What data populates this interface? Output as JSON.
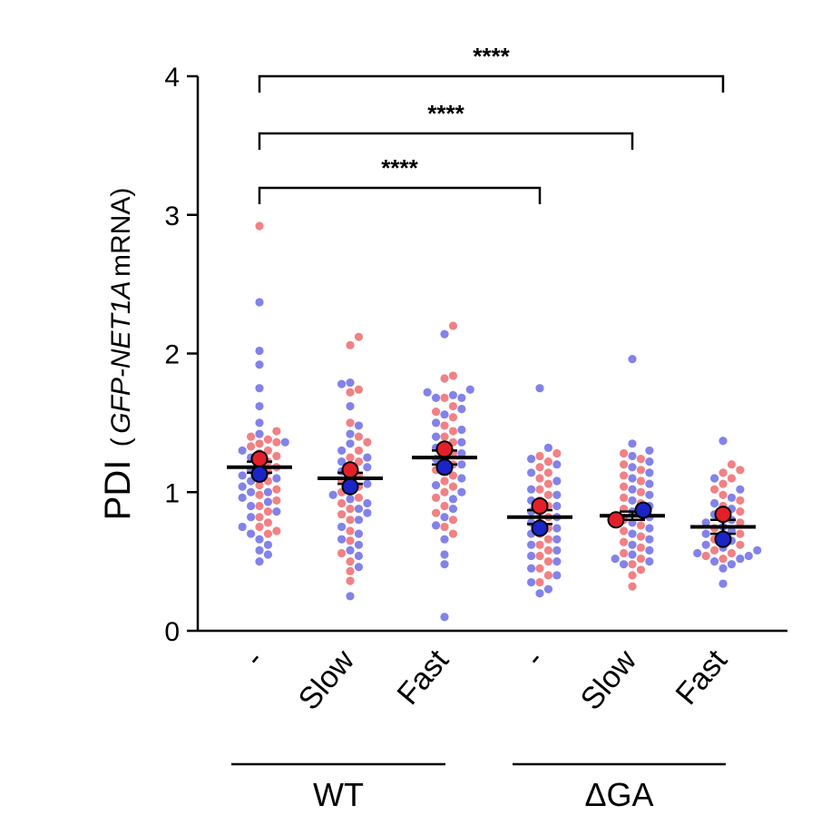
{
  "chart_data": {
    "type": "scatter",
    "ylabel": {
      "main": "PDI",
      "open": "(",
      "gene": "GFP-NET1A",
      "suffix": " mRNA)"
    },
    "ylim": [
      0,
      4
    ],
    "yticks": [
      0,
      1,
      2,
      3,
      4
    ],
    "categories": [
      "-",
      "Slow",
      "Fast",
      "-",
      "Slow",
      "Fast"
    ],
    "groups": [
      {
        "label": "WT",
        "categories": [
          0,
          1,
          2
        ]
      },
      {
        "label": "ΔGA",
        "categories": [
          3,
          4,
          5
        ]
      }
    ],
    "series_colors": {
      "rep1": "#ee6b6f",
      "rep2": "#6c6ce6",
      "rep1_mean": "#e3202a",
      "rep2_mean": "#1a24c8"
    },
    "means": [
      1.18,
      1.1,
      1.25,
      0.82,
      0.83,
      0.75
    ],
    "sem": [
      0.04,
      0.04,
      0.05,
      0.05,
      0.03,
      0.05
    ],
    "rep_means": [
      {
        "rep1": 1.24,
        "rep2": 1.13
      },
      {
        "rep1": 1.16,
        "rep2": 1.04
      },
      {
        "rep1": 1.31,
        "rep2": 1.18
      },
      {
        "rep1": 0.9,
        "rep2": 0.74
      },
      {
        "rep1": 0.8,
        "rep2": 0.87
      },
      {
        "rep1": 0.84,
        "rep2": 0.66
      }
    ],
    "points": [
      {
        "rep1": [
          2.92,
          1.44,
          1.4,
          1.38,
          1.35,
          1.33,
          1.3,
          1.28,
          1.26,
          1.22,
          1.18,
          1.15,
          1.12,
          1.08,
          1.05,
          1.02,
          0.98,
          0.94,
          0.9,
          0.86,
          0.82,
          0.78,
          0.75,
          0.72,
          0.7,
          1.36
        ],
        "rep2": [
          2.37,
          2.02,
          1.92,
          1.75,
          1.62,
          1.5,
          1.42,
          1.36,
          1.3,
          1.25,
          1.2,
          1.16,
          1.12,
          1.08,
          1.04,
          1.0,
          0.96,
          0.93,
          0.9,
          0.86,
          0.82,
          0.75,
          0.7,
          0.66,
          0.62,
          0.58,
          0.55,
          0.5,
          1.1,
          1.0
        ]
      },
      {
        "rep1": [
          2.12,
          2.06,
          1.74,
          1.72,
          1.5,
          1.4,
          1.36,
          1.3,
          1.25,
          1.22,
          1.18,
          1.12,
          1.08,
          1.04,
          1.0,
          0.96,
          0.92,
          0.88,
          0.84,
          0.8,
          0.72,
          0.65,
          0.56,
          0.5,
          0.43,
          0.36
        ],
        "rep2": [
          1.79,
          1.78,
          1.62,
          1.48,
          1.42,
          1.35,
          1.3,
          1.25,
          1.22,
          1.18,
          1.15,
          1.1,
          1.06,
          1.02,
          0.98,
          0.95,
          0.92,
          0.88,
          0.85,
          0.8,
          0.75,
          0.7,
          0.66,
          0.62,
          0.58,
          0.54,
          0.46,
          0.25
        ]
      },
      {
        "rep1": [
          2.2,
          1.84,
          1.82,
          1.68,
          1.62,
          1.58,
          1.54,
          1.48,
          1.44,
          1.4,
          1.36,
          1.32,
          1.28,
          1.24,
          1.2,
          1.16,
          1.12,
          1.08,
          1.04,
          1.0,
          0.96,
          0.9,
          0.85,
          0.8,
          0.75,
          0.7
        ],
        "rep2": [
          2.14,
          1.74,
          1.72,
          1.7,
          1.68,
          1.68,
          1.6,
          1.56,
          1.5,
          1.45,
          1.4,
          1.36,
          1.32,
          1.28,
          1.24,
          1.2,
          1.15,
          1.1,
          1.05,
          1.0,
          0.95,
          0.88,
          0.82,
          0.76,
          0.66,
          0.55,
          0.48,
          0.1
        ]
      },
      {
        "rep1": [
          1.28,
          1.26,
          1.22,
          1.18,
          1.14,
          1.1,
          1.06,
          1.02,
          0.98,
          0.94,
          0.9,
          0.86,
          0.82,
          0.78,
          0.74,
          0.7,
          0.66,
          0.62,
          0.58,
          0.54,
          0.5,
          0.45,
          0.4,
          0.35
        ],
        "rep2": [
          1.75,
          1.32,
          1.24,
          1.2,
          1.14,
          1.08,
          1.02,
          0.98,
          0.94,
          0.9,
          0.86,
          0.82,
          0.78,
          0.74,
          0.7,
          0.66,
          0.62,
          0.58,
          0.54,
          0.5,
          0.45,
          0.4,
          0.35,
          0.3,
          0.27
        ]
      },
      {
        "rep1": [
          1.28,
          1.24,
          1.2,
          1.16,
          1.12,
          1.08,
          1.04,
          1.0,
          0.96,
          0.92,
          0.88,
          0.84,
          0.8,
          0.76,
          0.72,
          0.68,
          0.64,
          0.6,
          0.56,
          0.52,
          0.48,
          0.44,
          0.4,
          0.32
        ],
        "rep2": [
          1.96,
          1.35,
          1.3,
          1.26,
          1.22,
          1.18,
          1.14,
          1.1,
          1.06,
          1.02,
          0.98,
          0.94,
          0.9,
          0.86,
          0.82,
          0.78,
          0.74,
          0.7,
          0.66,
          0.62,
          0.58,
          0.55,
          0.52,
          0.5,
          0.48
        ]
      },
      {
        "rep1": [
          1.2,
          1.16,
          1.14,
          1.1,
          1.06,
          1.02,
          0.98,
          0.94,
          0.9,
          0.86,
          0.82,
          0.78,
          0.74,
          0.7,
          0.66,
          0.62,
          0.58,
          0.56,
          0.54,
          0.52
        ],
        "rep2": [
          1.37,
          1.1,
          1.02,
          0.96,
          0.92,
          0.88,
          0.84,
          0.8,
          0.78,
          0.75,
          0.72,
          0.7,
          0.68,
          0.65,
          0.62,
          0.6,
          0.58,
          0.56,
          0.54,
          0.52,
          0.5,
          0.48,
          0.45,
          0.34
        ]
      }
    ],
    "significance": [
      {
        "from": 0,
        "to": 5,
        "label": "****",
        "y": 4.0
      },
      {
        "from": 0,
        "to": 4,
        "label": "****",
        "y": 3.6
      },
      {
        "from": 0,
        "to": 3,
        "label": "****",
        "y": 3.2
      }
    ]
  }
}
